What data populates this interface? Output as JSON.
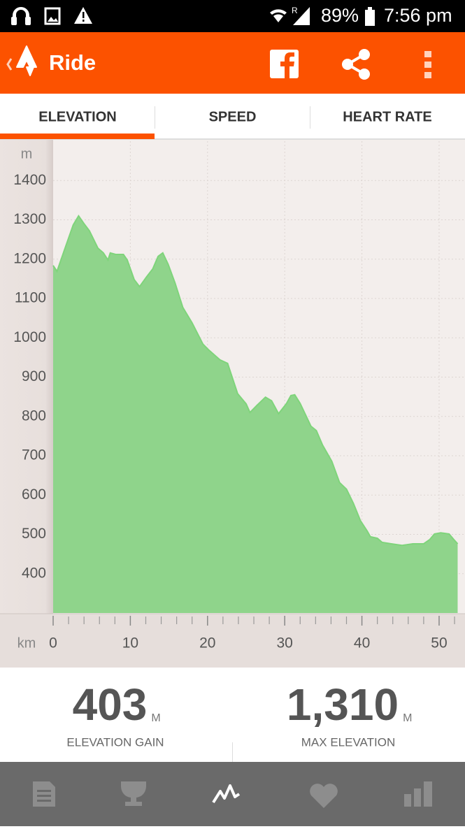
{
  "status_bar": {
    "roaming": "R",
    "battery": "89%",
    "time": "7:56 pm"
  },
  "app_bar": {
    "title": "Ride"
  },
  "tabs": [
    "ELEVATION",
    "SPEED",
    "HEART RATE"
  ],
  "chart_data": {
    "type": "area",
    "ylabel": "m",
    "xlabel": "km",
    "color": "#8fd48b",
    "line_color": "#7fd47b",
    "x": [
      0,
      0.5,
      1.7,
      2.6,
      3.3,
      4.0,
      4.7,
      5.8,
      6.5,
      7.1,
      7.4,
      8.1,
      9.1,
      9.6,
      10.5,
      11.2,
      12.1,
      12.9,
      13.6,
      14.2,
      14.9,
      15.8,
      16.8,
      18.0,
      19.4,
      20.1,
      21.6,
      22.6,
      23.9,
      25.0,
      25.5,
      26.4,
      27.5,
      28.3,
      29.2,
      30.2,
      30.8,
      31.3,
      32.0,
      33.4,
      34.1,
      34.9,
      36.1,
      37.1,
      38.0,
      38.9,
      39.8,
      40.7,
      41.1,
      42.0,
      42.6,
      43.8,
      45.2,
      46.6,
      48.0,
      48.8,
      49.4,
      50.2,
      51.3,
      51.9,
      52.4
    ],
    "values": [
      1184,
      1169,
      1237,
      1287,
      1310,
      1290,
      1272,
      1228,
      1216,
      1198,
      1216,
      1212,
      1212,
      1198,
      1148,
      1130,
      1155,
      1175,
      1207,
      1216,
      1187,
      1139,
      1077,
      1038,
      984,
      970,
      944,
      935,
      858,
      832,
      810,
      828,
      849,
      840,
      807,
      832,
      853,
      855,
      833,
      775,
      764,
      727,
      686,
      632,
      615,
      579,
      535,
      508,
      494,
      490,
      480,
      476,
      472,
      476,
      476,
      487,
      501,
      504,
      501,
      487,
      476
    ],
    "xlim": [
      0,
      53.3
    ],
    "ylim": [
      300,
      1500
    ],
    "xticks": [
      0,
      10,
      20,
      30,
      40,
      50
    ],
    "x_minor_ticks": [
      2,
      4,
      6,
      8,
      12,
      14,
      16,
      18,
      22,
      24,
      26,
      28,
      32,
      34,
      36,
      38,
      42,
      44,
      46,
      48,
      52
    ],
    "yticks": [
      400,
      500,
      600,
      700,
      800,
      900,
      1000,
      1100,
      1200,
      1300,
      1400
    ],
    "grid": true
  },
  "stats": [
    {
      "value": "403",
      "unit": "M",
      "label": "ELEVATION GAIN"
    },
    {
      "value": "1,310",
      "unit": "M",
      "label": "MAX ELEVATION"
    }
  ]
}
